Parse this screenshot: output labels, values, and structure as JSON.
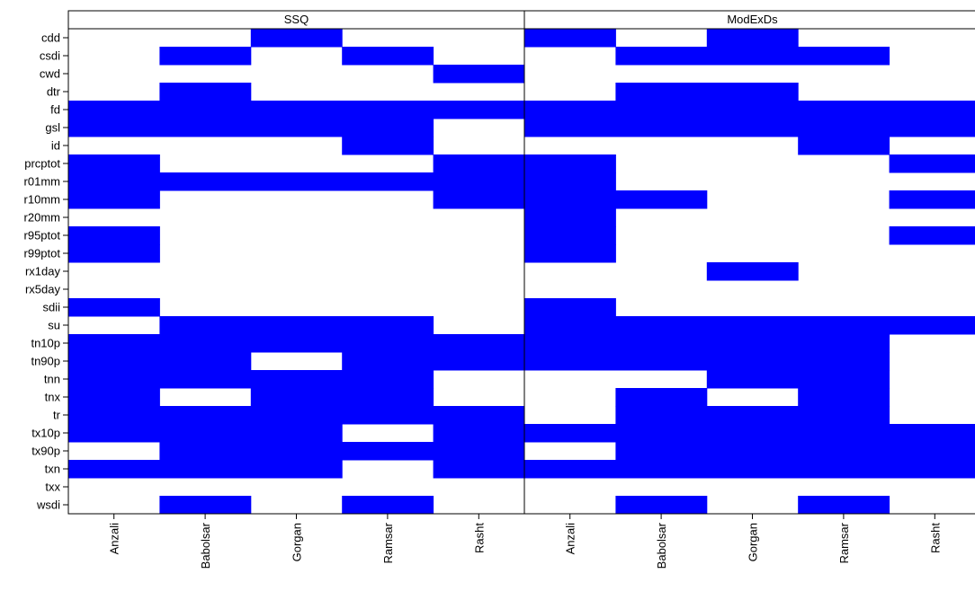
{
  "colors": {
    "presence": "#0000ff",
    "absence": "#ffffff",
    "strip": "#ffffff",
    "frame": "#000000"
  },
  "chart_data": [
    {
      "type": "heatmap",
      "title": "SSQ",
      "categories": [
        "Anzali",
        "Babolsar",
        "Gorgan",
        "Ramsar",
        "Rasht"
      ],
      "y_labels": [
        "cdd",
        "csdi",
        "cwd",
        "dtr",
        "fd",
        "gsl",
        "id",
        "prcptot",
        "r01mm",
        "r10mm",
        "r20mm",
        "r95ptot",
        "r99ptot",
        "rx1day",
        "rx5day",
        "sdii",
        "su",
        "tn10p",
        "tn90p",
        "tnn",
        "tnx",
        "tr",
        "tx10p",
        "tx90p",
        "txn",
        "txx",
        "wsdi"
      ],
      "values": [
        [
          0,
          0,
          1,
          0,
          0
        ],
        [
          0,
          1,
          0,
          1,
          0
        ],
        [
          0,
          0,
          0,
          0,
          1
        ],
        [
          0,
          1,
          0,
          0,
          0
        ],
        [
          1,
          1,
          1,
          1,
          1
        ],
        [
          1,
          1,
          1,
          1,
          0
        ],
        [
          0,
          0,
          0,
          1,
          0
        ],
        [
          1,
          0,
          0,
          0,
          1
        ],
        [
          1,
          1,
          1,
          1,
          1
        ],
        [
          1,
          0,
          0,
          0,
          1
        ],
        [
          0,
          0,
          0,
          0,
          0
        ],
        [
          1,
          0,
          0,
          0,
          0
        ],
        [
          1,
          0,
          0,
          0,
          0
        ],
        [
          0,
          0,
          0,
          0,
          0
        ],
        [
          0,
          0,
          0,
          0,
          0
        ],
        [
          1,
          0,
          0,
          0,
          0
        ],
        [
          0,
          1,
          1,
          1,
          0
        ],
        [
          1,
          1,
          1,
          1,
          1
        ],
        [
          1,
          1,
          0,
          1,
          1
        ],
        [
          1,
          1,
          1,
          1,
          0
        ],
        [
          1,
          0,
          1,
          1,
          0
        ],
        [
          1,
          1,
          1,
          1,
          1
        ],
        [
          1,
          1,
          1,
          0,
          1
        ],
        [
          0,
          1,
          1,
          1,
          1
        ],
        [
          1,
          1,
          1,
          0,
          1
        ],
        [
          0,
          0,
          0,
          0,
          0
        ],
        [
          0,
          1,
          0,
          1,
          0
        ]
      ]
    },
    {
      "type": "heatmap",
      "title": "ModExDs",
      "categories": [
        "Anzali",
        "Babolsar",
        "Gorgan",
        "Ramsar",
        "Rasht"
      ],
      "y_labels": [
        "cdd",
        "csdi",
        "cwd",
        "dtr",
        "fd",
        "gsl",
        "id",
        "prcptot",
        "r01mm",
        "r10mm",
        "r20mm",
        "r95ptot",
        "r99ptot",
        "rx1day",
        "rx5day",
        "sdii",
        "su",
        "tn10p",
        "tn90p",
        "tnn",
        "tnx",
        "tr",
        "tx10p",
        "tx90p",
        "txn",
        "txx",
        "wsdi"
      ],
      "values": [
        [
          1,
          0,
          1,
          0,
          0
        ],
        [
          0,
          1,
          1,
          1,
          0
        ],
        [
          0,
          0,
          0,
          0,
          0
        ],
        [
          0,
          1,
          1,
          0,
          0
        ],
        [
          1,
          1,
          1,
          1,
          1
        ],
        [
          1,
          1,
          1,
          1,
          1
        ],
        [
          0,
          0,
          0,
          1,
          0
        ],
        [
          1,
          0,
          0,
          0,
          1
        ],
        [
          1,
          0,
          0,
          0,
          0
        ],
        [
          1,
          1,
          0,
          0,
          1
        ],
        [
          1,
          0,
          0,
          0,
          0
        ],
        [
          1,
          0,
          0,
          0,
          1
        ],
        [
          1,
          0,
          0,
          0,
          0
        ],
        [
          0,
          0,
          1,
          0,
          0
        ],
        [
          0,
          0,
          0,
          0,
          0
        ],
        [
          1,
          0,
          0,
          0,
          0
        ],
        [
          1,
          1,
          1,
          1,
          1
        ],
        [
          1,
          1,
          1,
          1,
          0
        ],
        [
          1,
          1,
          1,
          1,
          0
        ],
        [
          0,
          0,
          1,
          1,
          0
        ],
        [
          0,
          1,
          0,
          1,
          0
        ],
        [
          0,
          1,
          1,
          1,
          0
        ],
        [
          1,
          1,
          1,
          1,
          1
        ],
        [
          0,
          1,
          1,
          1,
          1
        ],
        [
          1,
          1,
          1,
          1,
          1
        ],
        [
          0,
          0,
          0,
          0,
          0
        ],
        [
          0,
          1,
          0,
          1,
          0
        ]
      ]
    }
  ]
}
